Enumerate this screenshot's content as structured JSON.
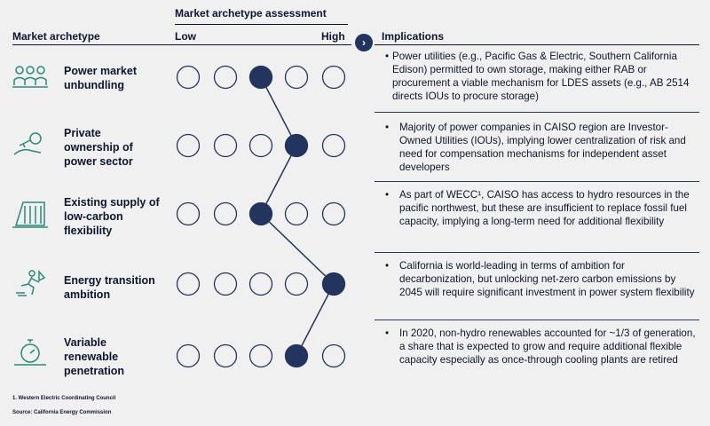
{
  "header": {
    "assessment_title": "Market archetype assessment",
    "archetype_col": "Market archetype",
    "low": "Low",
    "high": "High",
    "implications_col": "Implications"
  },
  "archetypes": [
    {
      "label": "Power market unbundling",
      "level": 3,
      "icon": "people-icon",
      "implication": "Power utilities (e.g., Pacific Gas & Electric, Southern California Edison) permitted to own storage, making either RAB or procurement a viable mechanism for LDES assets (e.g., AB 2514 directs IOUs to procure storage)"
    },
    {
      "label": "Private ownership of power sector",
      "level": 4,
      "icon": "key-hand-icon",
      "implication": "Majority of power companies in CAISO region are Investor-Owned Utilities (IOUs), implying lower centralization of risk and need for compensation mechanisms for independent asset developers"
    },
    {
      "label": "Existing supply of low-carbon flexibility",
      "level": 3,
      "icon": "dam-icon",
      "implication": "As part of WECC¹, CAISO has access to hydro resources in the pacific northwest, but these are insufficient to replace fossil fuel capacity, implying a long-term need for additional flexibility"
    },
    {
      "label": "Energy transition ambition",
      "level": 5,
      "icon": "running-person-icon",
      "implication": "California is world-leading in terms of ambition for decarbonization, but unlocking net-zero carbon emissions by 2045 will require significant investment in power system flexibility"
    },
    {
      "label": "Variable renewable penetration",
      "level": 4,
      "icon": "stopwatch-icon",
      "implication": "In 2020, non-hydro renewables accounted for ~1/3 of generation, a share that is expected to grow and require additional flexible capacity especially as once-through cooling plants are retired"
    }
  ],
  "bullet": "•",
  "footnote": "1.      Western Electric Coordinating Council",
  "source": "Source: California Energy Commission",
  "colors": {
    "navy": "#23355f",
    "teal": "#2a8a7a",
    "ring": "#23355f"
  }
}
